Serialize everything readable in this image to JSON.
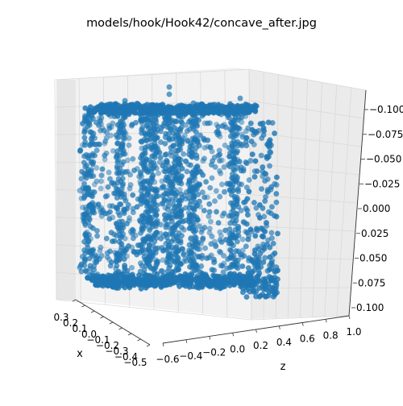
{
  "chart_data": {
    "type": "scatter",
    "projection": "3d",
    "title": "models/hook/Hook42/concave_after.jpg",
    "xlabel": "x",
    "ylabel": "",
    "zlabel": "z",
    "x_ticks": [
      "0.3",
      "0.2",
      "0.1",
      "0.0",
      "−0.1",
      "−0.2",
      "−0.3",
      "−0.4",
      "−0.5"
    ],
    "z_ticks": [
      "−0.6",
      "−0.4",
      "−0.2",
      "0.0",
      "0.2",
      "0.4",
      "0.6",
      "0.8",
      "1.0"
    ],
    "v_ticks": [
      "−0.100",
      "−0.075",
      "−0.050",
      "−0.025",
      "0.000",
      "0.025",
      "0.050",
      "0.075",
      "0.100"
    ],
    "x_range": [
      -0.5,
      0.3
    ],
    "z_range": [
      -0.6,
      1.0
    ],
    "v_range": [
      -0.1,
      0.1
    ],
    "grid": true,
    "point_color": "#1f77b4",
    "series": [
      {
        "shape": "hollow rectangular box of points (concave hook)",
        "point_count_estimate": 2600,
        "x_extent": [
          -0.45,
          0.25
        ],
        "z_extent": [
          -0.45,
          0.75
        ],
        "v_extent": [
          -0.1,
          0.07
        ]
      }
    ]
  }
}
